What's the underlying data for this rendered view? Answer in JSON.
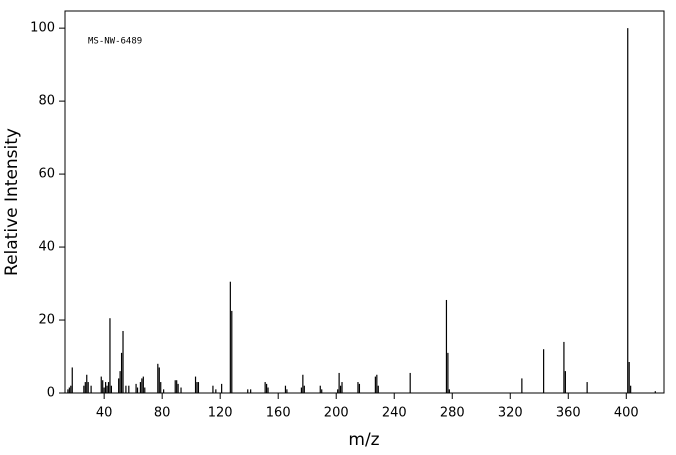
{
  "chart_data": {
    "type": "stem",
    "annotation": "MS-NW-6489",
    "xlabel": "m/z",
    "ylabel": "Relative Intensity",
    "color": "#000000",
    "x": [
      15,
      16,
      17,
      18,
      26,
      27,
      28,
      29,
      31,
      38,
      39,
      40,
      41,
      42,
      43,
      44,
      45,
      50,
      51,
      52,
      53,
      55,
      57,
      62,
      63,
      65,
      66,
      67,
      68,
      77,
      78,
      79,
      81,
      89,
      90,
      91,
      93,
      103,
      104,
      105,
      115,
      117,
      121,
      127,
      128,
      139,
      141,
      151,
      152,
      153,
      165,
      166,
      176,
      177,
      178,
      189,
      190,
      201,
      202,
      203,
      204,
      215,
      216,
      227,
      228,
      229,
      251,
      276,
      277,
      278,
      328,
      343,
      357,
      358,
      373,
      401,
      402,
      403,
      420
    ],
    "values": [
      1,
      1.5,
      2,
      7,
      2,
      3,
      5,
      3,
      2,
      4.5,
      3.5,
      1.5,
      3,
      2,
      3,
      20.5,
      2,
      4,
      6,
      11,
      17,
      2,
      2,
      2.5,
      1.5,
      3,
      4,
      4.5,
      1.5,
      8,
      7,
      3,
      1,
      3.5,
      3.5,
      2.5,
      1.5,
      4.5,
      3,
      3,
      2,
      1,
      2.5,
      30.5,
      22.5,
      1,
      1,
      3,
      2.5,
      1.5,
      2,
      1,
      1.5,
      5,
      2,
      2,
      1,
      1,
      5.5,
      2,
      3,
      3,
      2.5,
      4.5,
      5,
      2,
      5.5,
      25.5,
      11,
      1,
      4,
      12,
      14,
      6,
      3,
      100,
      8.5,
      2,
      0.5
    ],
    "xlim": [
      13,
      426
    ],
    "xticks": [
      40,
      80,
      120,
      160,
      200,
      240,
      280,
      320,
      360,
      400
    ],
    "ylim": [
      0,
      104.7
    ],
    "yticks": [
      0,
      20,
      40,
      60,
      80,
      100
    ]
  }
}
